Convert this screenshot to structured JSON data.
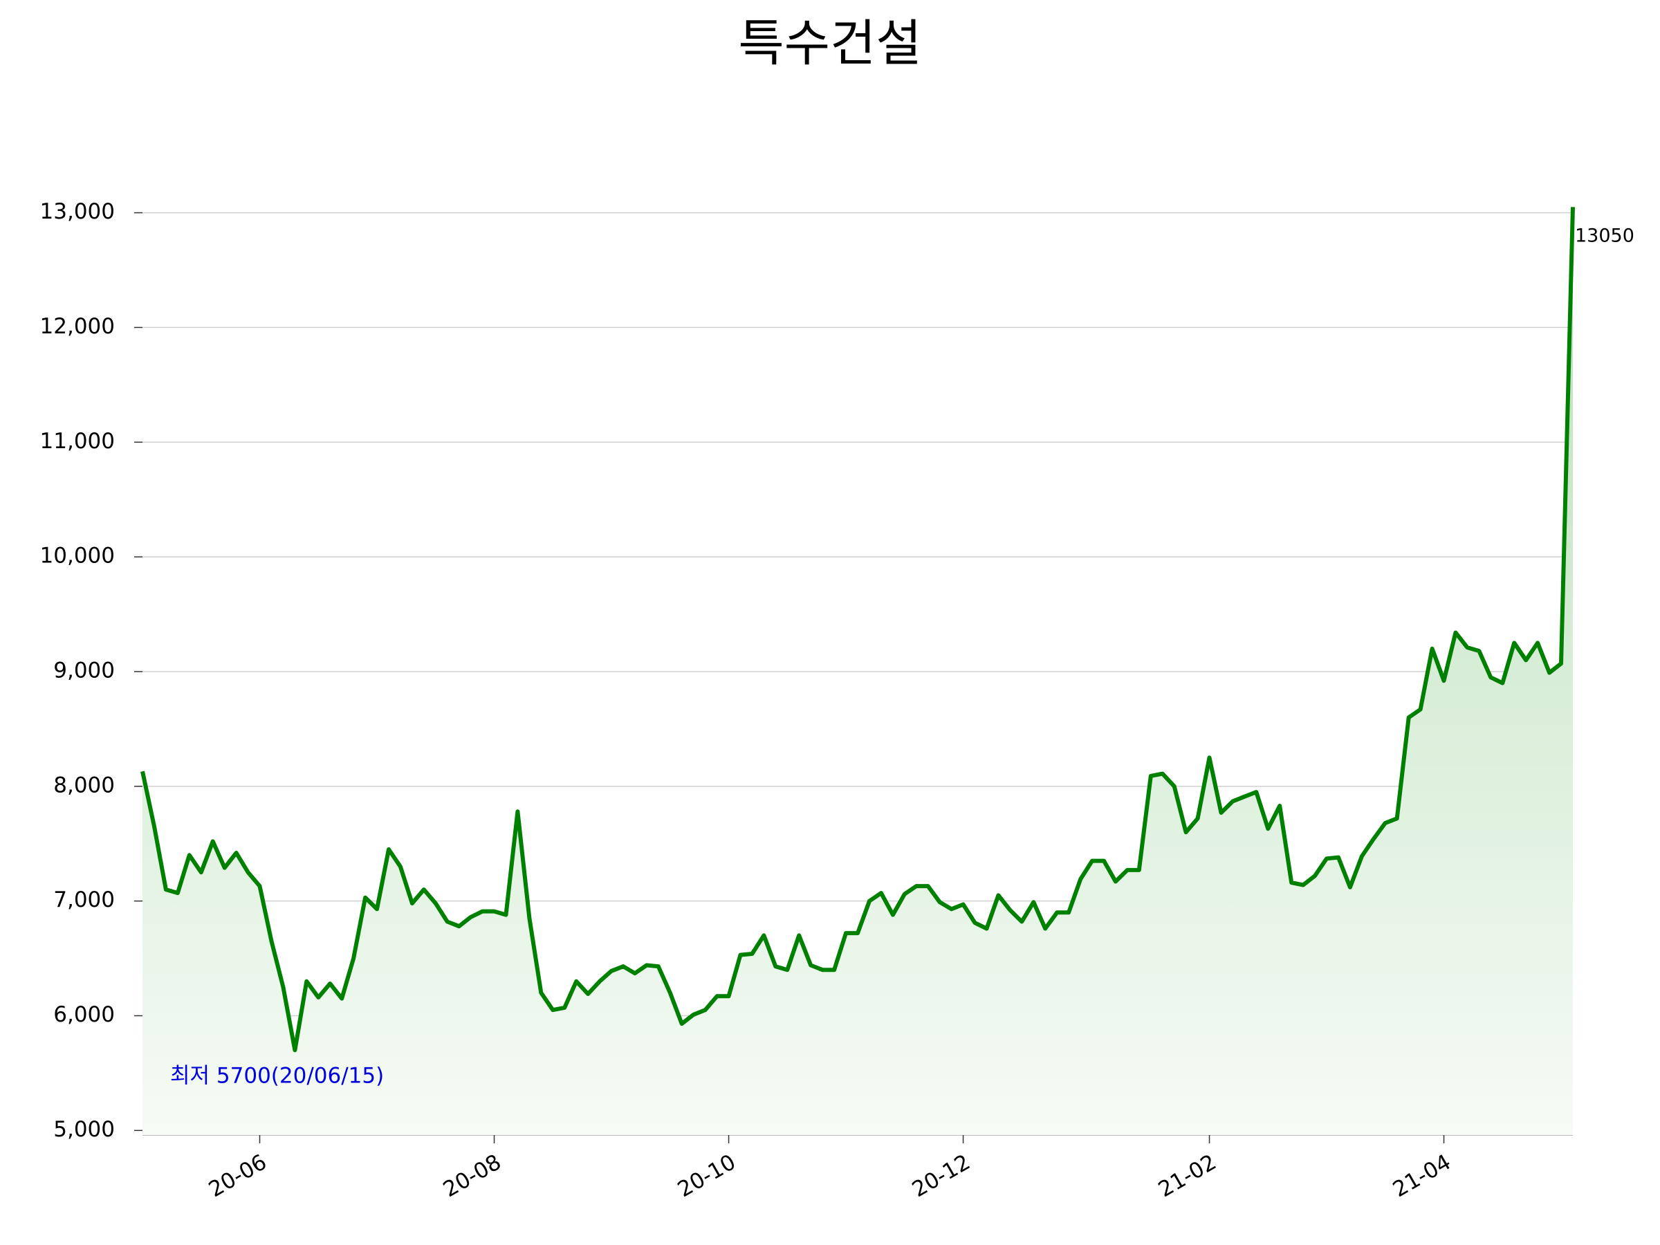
{
  "chart_data": {
    "type": "line",
    "title": "특수건설",
    "categories": [
      null,
      null,
      null,
      null,
      null,
      null,
      null,
      null,
      null,
      null,
      "20-06",
      null,
      null,
      null,
      null,
      null,
      null,
      null,
      null,
      null,
      null,
      null,
      null,
      null,
      null,
      null,
      null,
      null,
      null,
      null,
      "20-08",
      null,
      null,
      null,
      null,
      null,
      null,
      null,
      null,
      null,
      null,
      null,
      null,
      null,
      null,
      null,
      null,
      null,
      null,
      null,
      "20-10",
      null,
      null,
      null,
      null,
      null,
      null,
      null,
      null,
      null,
      null,
      null,
      null,
      null,
      null,
      null,
      null,
      null,
      null,
      null,
      "20-12",
      null,
      null,
      null,
      null,
      null,
      null,
      null,
      null,
      null,
      null,
      null,
      null,
      null,
      null,
      null,
      null,
      null,
      null,
      null,
      null,
      "21-02",
      null,
      null,
      null,
      null,
      null,
      null,
      null,
      null,
      null,
      null,
      null,
      null,
      null,
      null,
      null,
      null,
      null,
      null,
      null,
      "21-04",
      null,
      null,
      null,
      null,
      null,
      null,
      null,
      null,
      null,
      null,
      null
    ],
    "series": [
      {
        "name": "특수건설",
        "color": "#008000",
        "values": [
          8130,
          7650,
          7100,
          7070,
          7400,
          7250,
          7520,
          7290,
          7420,
          7250,
          7130,
          6650,
          6250,
          5700,
          6300,
          6160,
          6280,
          6150,
          6500,
          7030,
          6930,
          7450,
          7300,
          6980,
          7100,
          6980,
          6820,
          6780,
          6860,
          6910,
          6910,
          6880,
          7780,
          6850,
          6200,
          6050,
          6070,
          6300,
          6190,
          6300,
          6390,
          6430,
          6370,
          6440,
          6430,
          6200,
          5930,
          6010,
          6050,
          6170,
          6170,
          6530,
          6540,
          6700,
          6430,
          6400,
          6700,
          6440,
          6400,
          6400,
          6720,
          6720,
          7000,
          7070,
          6880,
          7060,
          7130,
          7130,
          6990,
          6930,
          6970,
          6810,
          6760,
          7050,
          6920,
          6820,
          6990,
          6760,
          6900,
          6900,
          7190,
          7350,
          7350,
          7170,
          7270,
          7270,
          8090,
          8110,
          8000,
          7600,
          7720,
          8250,
          7770,
          7870,
          7910,
          7950,
          7630,
          7830,
          7160,
          7140,
          7220,
          7370,
          7380,
          7120,
          7390,
          7540,
          7680,
          7720,
          8600,
          8670,
          9200,
          8920,
          9340,
          9210,
          9180,
          8950,
          8900,
          9250,
          9100,
          9250,
          8990,
          9070,
          13050
        ]
      }
    ],
    "ylim": [
      4960,
      13100
    ],
    "yticks": [
      {
        "value": 5000,
        "label": "5,000"
      },
      {
        "value": 6000,
        "label": "6,000"
      },
      {
        "value": 7000,
        "label": "7,000"
      },
      {
        "value": 8000,
        "label": "8,000"
      },
      {
        "value": 9000,
        "label": "9,000"
      },
      {
        "value": 10000,
        "label": "10,000"
      },
      {
        "value": 11000,
        "label": "11,000"
      },
      {
        "value": 12000,
        "label": "12,000"
      },
      {
        "value": 13000,
        "label": "13,000"
      }
    ],
    "grid": true,
    "annotations": [
      "최저 5700(20/06/15)",
      "13050"
    ]
  }
}
